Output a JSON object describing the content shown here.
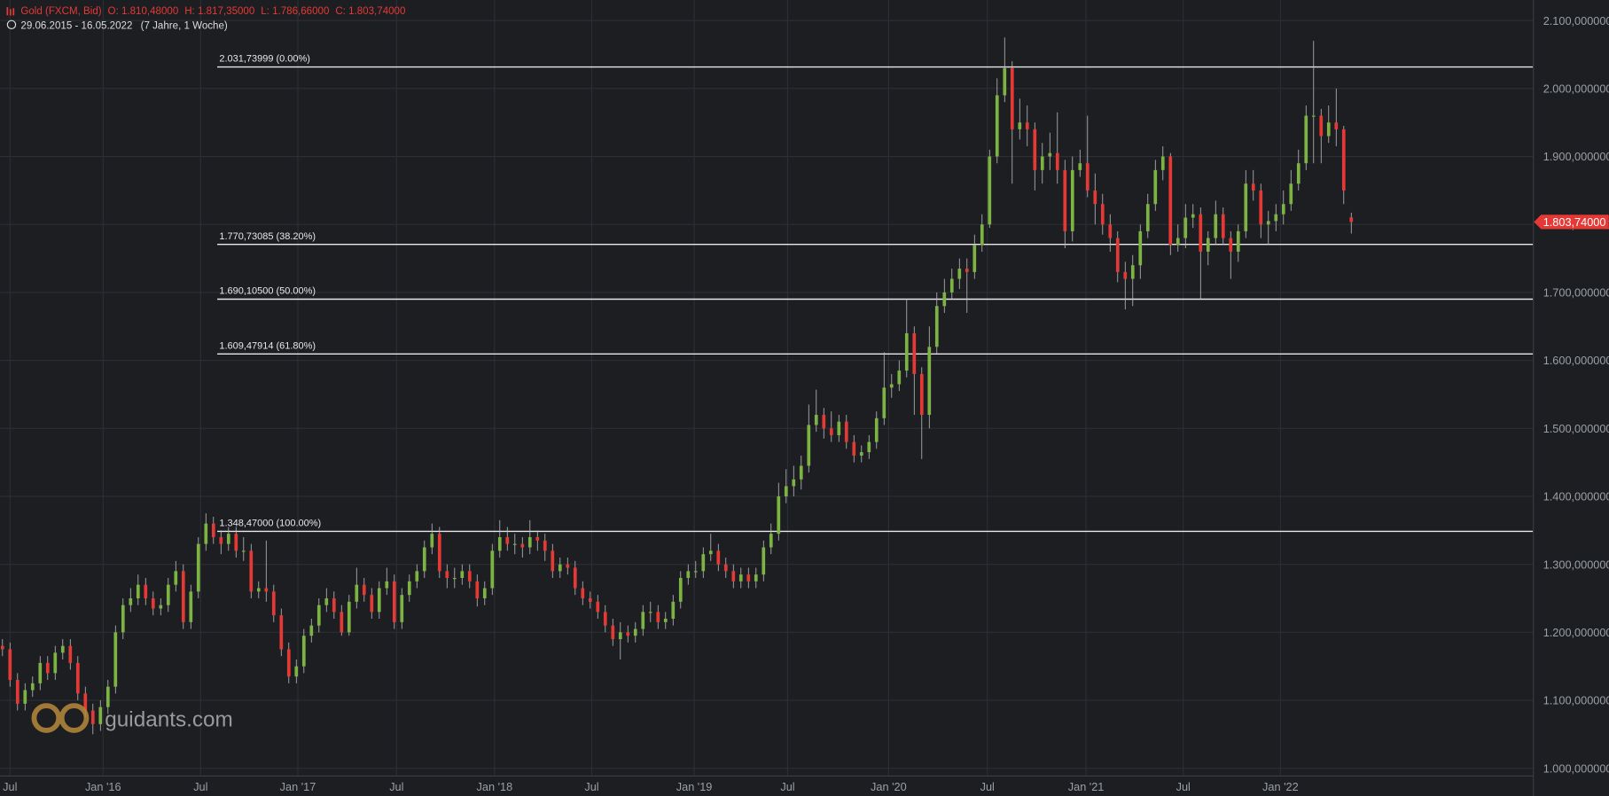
{
  "chart_data": {
    "type": "candlestick",
    "header": {
      "instrument": "Gold (FXCM, Bid)",
      "ohlc": [
        "O: 1.810,48000",
        "H: 1.817,35000",
        "L: 1.786,66000",
        "C: 1.803,74000"
      ],
      "range": "29.06.2015 - 16.05.2022",
      "span": "(7 Jahre, 1 Woche)"
    },
    "watermark": "guidants.com",
    "up_color": "#7cb342",
    "down_color": "#e53935",
    "grid": true,
    "xlim": [
      -0.3,
      203.1
    ],
    "xticks": [
      {
        "value": 1,
        "label": "Jul"
      },
      {
        "value": 13.35,
        "label": "Jan '16"
      },
      {
        "value": 26.3,
        "label": "Jul"
      },
      {
        "value": 39.2,
        "label": "Jan '17"
      },
      {
        "value": 52.3,
        "label": "Jul"
      },
      {
        "value": 65.3,
        "label": "Jan '18"
      },
      {
        "value": 78.2,
        "label": "Jul"
      },
      {
        "value": 91.8,
        "label": "Jan '19"
      },
      {
        "value": 104.2,
        "label": "Jul"
      },
      {
        "value": 117.6,
        "label": "Jan '20"
      },
      {
        "value": 130.7,
        "label": "Jul"
      },
      {
        "value": 143.8,
        "label": "Jan '21"
      },
      {
        "value": 156.7,
        "label": "Jul"
      },
      {
        "value": 169.6,
        "label": "Jan '22"
      }
    ],
    "ylim": [
      989.4,
      2130.2
    ],
    "yticks": [
      {
        "value": 1000,
        "label": "1.000,000000"
      },
      {
        "value": 1100,
        "label": "1.100,000000"
      },
      {
        "value": 1200,
        "label": "1.200,000000"
      },
      {
        "value": 1300,
        "label": "1.300,000000"
      },
      {
        "value": 1400,
        "label": "1.400,000000"
      },
      {
        "value": 1500,
        "label": "1.500,000000"
      },
      {
        "value": 1600,
        "label": "1.600,000000"
      },
      {
        "value": 1700,
        "label": "1.700,000000"
      },
      {
        "value": 1800,
        "label": "1.800,000000"
      },
      {
        "value": 1900,
        "label": "1.900,000000"
      },
      {
        "value": 2000,
        "label": "2.000,000000"
      },
      {
        "value": 2100,
        "label": "2.100,000000"
      }
    ],
    "last_price": {
      "value": 1803.74,
      "label": "1.803,74000"
    },
    "fib_levels": [
      {
        "value": 2031.73999,
        "label": "2.031,73999 (0.00%)"
      },
      {
        "value": 1770.73085,
        "label": "1.770,73085 (38.20%)"
      },
      {
        "value": 1690.105,
        "label": "1.690,10500 (50.00%)"
      },
      {
        "value": 1609.47914,
        "label": "1.609,47914 (61.80%)"
      },
      {
        "value": 1348.47,
        "label": "1.348,47000 (100.00%)"
      }
    ],
    "open": [
      1180,
      1175,
      1130,
      1095,
      1115,
      1125,
      1155,
      1140,
      1170,
      1180,
      1155,
      1110,
      1085,
      1065,
      1090,
      1120,
      1200,
      1240,
      1250,
      1270,
      1250,
      1235,
      1240,
      1270,
      1290,
      1215,
      1260,
      1330,
      1360,
      1340,
      1330,
      1345,
      1320,
      1320,
      1260,
      1265,
      1260,
      1225,
      1175,
      1135,
      1150,
      1195,
      1210,
      1240,
      1250,
      1230,
      1200,
      1245,
      1270,
      1255,
      1230,
      1265,
      1275,
      1215,
      1255,
      1275,
      1290,
      1325,
      1345,
      1290,
      1280,
      1280,
      1290,
      1275,
      1250,
      1265,
      1320,
      1340,
      1330,
      1330,
      1325,
      1340,
      1335,
      1320,
      1290,
      1300,
      1295,
      1265,
      1250,
      1245,
      1230,
      1210,
      1190,
      1200,
      1195,
      1205,
      1230,
      1230,
      1215,
      1220,
      1245,
      1280,
      1290,
      1290,
      1315,
      1320,
      1300,
      1290,
      1275,
      1285,
      1275,
      1285,
      1325,
      1345,
      1400,
      1415,
      1425,
      1445,
      1505,
      1520,
      1500,
      1490,
      1510,
      1480,
      1460,
      1465,
      1480,
      1515,
      1560,
      1565,
      1585,
      1640,
      1580,
      1520,
      1620,
      1680,
      1700,
      1720,
      1735,
      1730,
      1770,
      1800,
      1900,
      1990,
      2030,
      1940,
      1950,
      1940,
      1880,
      1900,
      1905,
      1880,
      1790,
      1880,
      1890,
      1850,
      1830,
      1800,
      1780,
      1730,
      1720,
      1740,
      1790,
      1830,
      1880,
      1900,
      1770,
      1780,
      1810,
      1815,
      1760,
      1780,
      1815,
      1780,
      1760,
      1790,
      1860,
      1850,
      1800,
      1805,
      1815,
      1830,
      1860,
      1890,
      1960,
      1960,
      1930,
      1950,
      1940,
      1810.48
    ],
    "high": [
      1190,
      1185,
      1140,
      1125,
      1135,
      1165,
      1165,
      1180,
      1190,
      1190,
      1165,
      1120,
      1095,
      1100,
      1130,
      1210,
      1250,
      1265,
      1285,
      1280,
      1260,
      1250,
      1280,
      1305,
      1300,
      1270,
      1340,
      1375,
      1370,
      1350,
      1355,
      1355,
      1340,
      1330,
      1275,
      1335,
      1270,
      1235,
      1185,
      1160,
      1205,
      1220,
      1250,
      1265,
      1260,
      1240,
      1255,
      1295,
      1280,
      1265,
      1275,
      1295,
      1285,
      1265,
      1285,
      1300,
      1335,
      1360,
      1355,
      1300,
      1295,
      1300,
      1300,
      1285,
      1275,
      1330,
      1365,
      1355,
      1345,
      1340,
      1365,
      1350,
      1345,
      1330,
      1310,
      1310,
      1305,
      1275,
      1260,
      1255,
      1240,
      1220,
      1215,
      1210,
      1215,
      1240,
      1245,
      1240,
      1230,
      1255,
      1290,
      1300,
      1305,
      1325,
      1345,
      1330,
      1310,
      1300,
      1295,
      1295,
      1295,
      1335,
      1360,
      1420,
      1440,
      1445,
      1460,
      1535,
      1557,
      1530,
      1525,
      1520,
      1520,
      1490,
      1475,
      1490,
      1525,
      1612,
      1580,
      1600,
      1690,
      1650,
      1590,
      1650,
      1700,
      1720,
      1735,
      1750,
      1750,
      1785,
      1815,
      1910,
      2015,
      2075,
      2040,
      1985,
      1975,
      1950,
      1920,
      1935,
      1965,
      1895,
      1900,
      1910,
      1960,
      1875,
      1845,
      1815,
      1790,
      1745,
      1755,
      1800,
      1845,
      1895,
      1915,
      1905,
      1800,
      1830,
      1830,
      1825,
      1790,
      1835,
      1825,
      1790,
      1800,
      1880,
      1880,
      1860,
      1820,
      1830,
      1850,
      1880,
      1910,
      1975,
      2070,
      1970,
      1975,
      2000,
      1945,
      1817.35
    ],
    "low": [
      1165,
      1120,
      1085,
      1085,
      1105,
      1115,
      1130,
      1130,
      1160,
      1145,
      1100,
      1075,
      1050,
      1055,
      1080,
      1110,
      1190,
      1230,
      1240,
      1240,
      1225,
      1225,
      1230,
      1260,
      1205,
      1205,
      1250,
      1320,
      1330,
      1315,
      1320,
      1310,
      1305,
      1250,
      1250,
      1245,
      1215,
      1165,
      1125,
      1125,
      1140,
      1185,
      1200,
      1230,
      1220,
      1195,
      1195,
      1235,
      1245,
      1220,
      1220,
      1255,
      1205,
      1205,
      1245,
      1265,
      1280,
      1315,
      1280,
      1265,
      1265,
      1270,
      1265,
      1238,
      1240,
      1255,
      1310,
      1320,
      1315,
      1310,
      1315,
      1320,
      1305,
      1280,
      1280,
      1285,
      1255,
      1240,
      1235,
      1220,
      1200,
      1180,
      1160,
      1185,
      1185,
      1195,
      1215,
      1205,
      1205,
      1210,
      1235,
      1270,
      1280,
      1280,
      1305,
      1290,
      1280,
      1265,
      1265,
      1265,
      1265,
      1275,
      1315,
      1335,
      1390,
      1400,
      1410,
      1435,
      1495,
      1485,
      1480,
      1480,
      1470,
      1450,
      1450,
      1455,
      1470,
      1505,
      1545,
      1555,
      1575,
      1520,
      1455,
      1500,
      1610,
      1670,
      1690,
      1705,
      1670,
      1720,
      1760,
      1795,
      1890,
      1980,
      1860,
      1925,
      1915,
      1850,
      1860,
      1880,
      1860,
      1765,
      1775,
      1870,
      1840,
      1800,
      1785,
      1760,
      1715,
      1675,
      1680,
      1720,
      1780,
      1820,
      1865,
      1755,
      1760,
      1765,
      1795,
      1690,
      1740,
      1770,
      1770,
      1720,
      1745,
      1780,
      1835,
      1780,
      1770,
      1790,
      1800,
      1820,
      1850,
      1880,
      1890,
      1890,
      1920,
      1915,
      1830,
      1786.66
    ],
    "close": [
      1175,
      1130,
      1095,
      1115,
      1125,
      1155,
      1140,
      1170,
      1180,
      1155,
      1110,
      1085,
      1065,
      1090,
      1120,
      1200,
      1240,
      1250,
      1270,
      1250,
      1235,
      1240,
      1270,
      1290,
      1215,
      1260,
      1330,
      1360,
      1340,
      1330,
      1345,
      1320,
      1320,
      1260,
      1265,
      1260,
      1225,
      1175,
      1135,
      1150,
      1195,
      1210,
      1240,
      1250,
      1230,
      1200,
      1245,
      1270,
      1255,
      1230,
      1265,
      1275,
      1215,
      1255,
      1275,
      1290,
      1325,
      1345,
      1290,
      1280,
      1280,
      1290,
      1275,
      1250,
      1265,
      1320,
      1340,
      1330,
      1330,
      1325,
      1340,
      1335,
      1320,
      1290,
      1300,
      1295,
      1265,
      1250,
      1245,
      1230,
      1210,
      1190,
      1200,
      1195,
      1205,
      1230,
      1230,
      1215,
      1220,
      1245,
      1280,
      1290,
      1290,
      1315,
      1320,
      1300,
      1290,
      1275,
      1285,
      1275,
      1285,
      1325,
      1345,
      1400,
      1415,
      1425,
      1445,
      1505,
      1520,
      1500,
      1490,
      1510,
      1480,
      1460,
      1465,
      1480,
      1515,
      1560,
      1565,
      1585,
      1640,
      1580,
      1520,
      1620,
      1680,
      1700,
      1720,
      1735,
      1730,
      1770,
      1800,
      1900,
      1990,
      2030,
      1940,
      1950,
      1940,
      1880,
      1900,
      1905,
      1880,
      1790,
      1880,
      1890,
      1850,
      1830,
      1800,
      1780,
      1730,
      1720,
      1740,
      1790,
      1830,
      1880,
      1900,
      1770,
      1780,
      1810,
      1815,
      1760,
      1780,
      1815,
      1780,
      1760,
      1790,
      1860,
      1850,
      1800,
      1805,
      1815,
      1830,
      1860,
      1890,
      1960,
      1960,
      1930,
      1950,
      1940,
      1850,
      1803.74
    ]
  }
}
